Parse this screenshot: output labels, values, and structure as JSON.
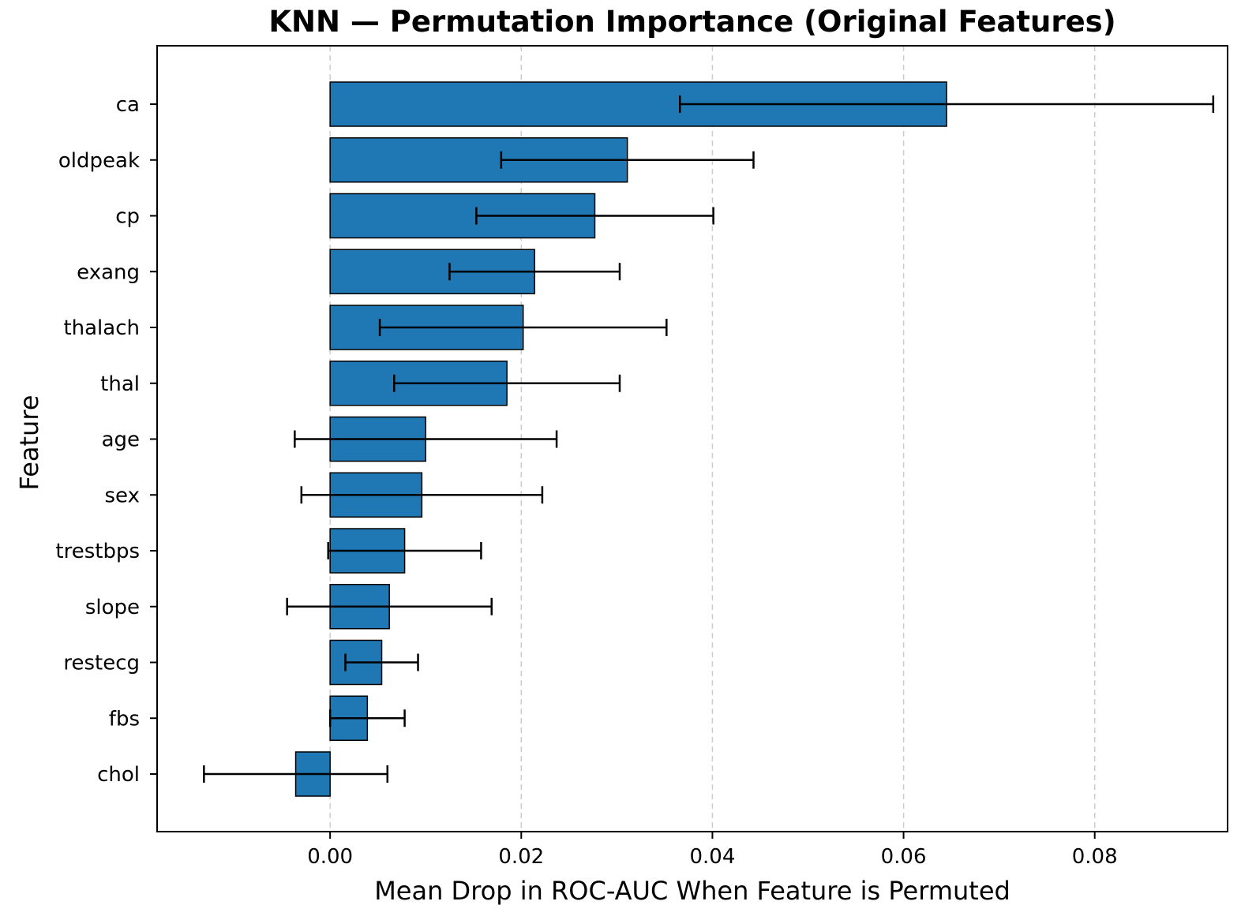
{
  "chart_data": {
    "type": "bar",
    "orientation": "horizontal",
    "title": "KNN — Permutation Importance (Original Features)",
    "xlabel": "Mean Drop in ROC-AUC When Feature is Permuted",
    "ylabel": "Feature",
    "categories": [
      "ca",
      "oldpeak",
      "cp",
      "exang",
      "thalach",
      "thal",
      "age",
      "sex",
      "trestbps",
      "slope",
      "restecg",
      "fbs",
      "chol"
    ],
    "values": [
      0.0645,
      0.0311,
      0.0277,
      0.0214,
      0.0202,
      0.0185,
      0.01,
      0.0096,
      0.0078,
      0.0062,
      0.0054,
      0.0039,
      -0.0036
    ],
    "error": [
      0.0279,
      0.0132,
      0.0124,
      0.0089,
      0.015,
      0.0118,
      0.0137,
      0.0126,
      0.008,
      0.0107,
      0.0038,
      0.0039,
      0.0096
    ],
    "xticks": [
      0.0,
      0.02,
      0.04,
      0.06,
      0.08
    ],
    "xtick_labels": [
      "0.00",
      "0.02",
      "0.04",
      "0.06",
      "0.08"
    ],
    "xlim": [
      -0.0181,
      0.0939
    ],
    "grid": "x-dashed",
    "bar_color": "#1f77b4",
    "edge_color": "#000000",
    "error_color": "#000000"
  }
}
